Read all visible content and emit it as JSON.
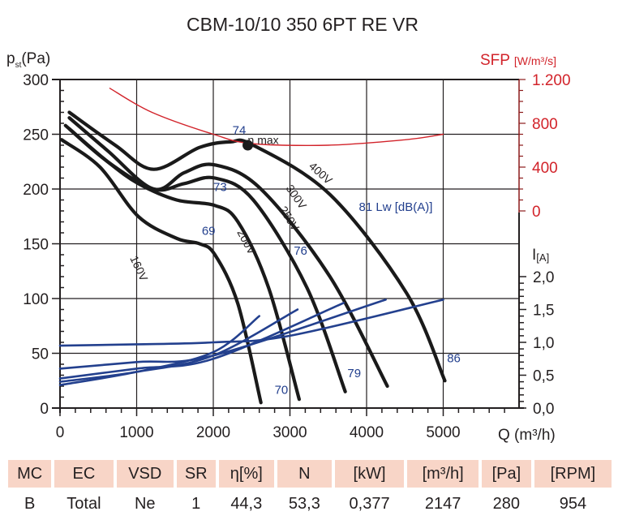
{
  "chart_data": {
    "type": "line",
    "title": "CBM-10/10 350 6PT RE VR",
    "xlabel": "Q (m³/h)",
    "ylabel": "pst(Pa)",
    "xlim": [
      0,
      6000
    ],
    "ylim": [
      0,
      300
    ],
    "x_ticks": [
      0,
      1000,
      2000,
      3000,
      4000,
      5000
    ],
    "y_ticks": [
      0,
      50,
      100,
      150,
      200,
      250,
      300
    ],
    "grid": true,
    "secondary_axes": {
      "sfp": {
        "label": "SFP",
        "unit": "[W/m³/s]",
        "ticks": [
          "1.200",
          "800",
          "400",
          "0"
        ],
        "range": [
          0,
          1200
        ],
        "color": "#d2232a"
      },
      "current": {
        "label": "I",
        "unit": "[A]",
        "ticks": [
          "0,0",
          "0,5",
          "1,0",
          "1,5",
          "2,0"
        ],
        "range": [
          0,
          2.5
        ]
      }
    },
    "series": [
      {
        "name": "160V",
        "kind": "pressure",
        "points": [
          [
            0,
            245
          ],
          [
            500,
            220
          ],
          [
            1000,
            175
          ],
          [
            1500,
            155
          ],
          [
            1800,
            150
          ],
          [
            2000,
            140
          ],
          [
            2300,
            95
          ],
          [
            2600,
            5
          ]
        ]
      },
      {
        "name": "200V",
        "kind": "pressure",
        "points": [
          [
            100,
            255
          ],
          [
            600,
            225
          ],
          [
            1000,
            205
          ],
          [
            1500,
            190
          ],
          [
            2000,
            185
          ],
          [
            2300,
            170
          ],
          [
            2700,
            110
          ],
          [
            3100,
            8
          ]
        ]
      },
      {
        "name": "250V",
        "kind": "pressure",
        "points": [
          [
            50,
            258
          ],
          [
            600,
            225
          ],
          [
            1200,
            200
          ],
          [
            1600,
            205
          ],
          [
            2000,
            210
          ],
          [
            2500,
            190
          ],
          [
            3200,
            110
          ],
          [
            3700,
            15
          ]
        ]
      },
      {
        "name": "300V",
        "kind": "pressure",
        "points": [
          [
            100,
            265
          ],
          [
            600,
            235
          ],
          [
            1200,
            200
          ],
          [
            1600,
            215
          ],
          [
            2000,
            222
          ],
          [
            2600,
            200
          ],
          [
            3500,
            120
          ],
          [
            4250,
            20
          ]
        ]
      },
      {
        "name": "400V",
        "kind": "pressure",
        "points": [
          [
            100,
            270
          ],
          [
            700,
            240
          ],
          [
            1200,
            218
          ],
          [
            1800,
            238
          ],
          [
            2200,
            243
          ],
          [
            2500,
            240
          ],
          [
            3500,
            195
          ],
          [
            4500,
            105
          ],
          [
            5000,
            25
          ]
        ]
      },
      {
        "name": "SFP",
        "kind": "sfp",
        "points": [
          [
            650,
            1120
          ],
          [
            1200,
            900
          ],
          [
            2000,
            700
          ],
          [
            2500,
            615
          ],
          [
            3500,
            600
          ],
          [
            4500,
            650
          ],
          [
            5000,
            700
          ]
        ]
      },
      {
        "name": "I 160V",
        "kind": "current",
        "points": [
          [
            0,
            0.35
          ],
          [
            1000,
            0.55
          ],
          [
            2000,
            0.85
          ],
          [
            2600,
            1.4
          ]
        ]
      },
      {
        "name": "I 200V",
        "kind": "current",
        "points": [
          [
            0,
            0.4
          ],
          [
            1000,
            0.55
          ],
          [
            2000,
            0.8
          ],
          [
            3100,
            1.5
          ]
        ]
      },
      {
        "name": "I 250V",
        "kind": "current",
        "points": [
          [
            0,
            0.45
          ],
          [
            1000,
            0.6
          ],
          [
            2000,
            0.75
          ],
          [
            3700,
            1.6
          ]
        ]
      },
      {
        "name": "I 300V",
        "kind": "current",
        "points": [
          [
            0,
            0.6
          ],
          [
            1000,
            0.7
          ],
          [
            2000,
            0.8
          ],
          [
            4250,
            1.65
          ]
        ]
      },
      {
        "name": "I 400V",
        "kind": "current",
        "points": [
          [
            0,
            0.95
          ],
          [
            1000,
            0.97
          ],
          [
            2000,
            1.0
          ],
          [
            3000,
            1.1
          ],
          [
            5000,
            1.65
          ]
        ]
      }
    ],
    "annotations": [
      {
        "text": "η max",
        "x": 2450,
        "y": 241
      },
      {
        "text": "74",
        "x": 2250,
        "y": 250
      },
      {
        "text": "73",
        "x": 2000,
        "y": 198
      },
      {
        "text": "69",
        "x": 1850,
        "y": 158
      },
      {
        "text": "76",
        "x": 3050,
        "y": 140
      },
      {
        "text": "81 Lw [dB(A)]",
        "x": 3900,
        "y": 180
      },
      {
        "text": "70",
        "x": 2800,
        "y": 13
      },
      {
        "text": "79",
        "x": 3750,
        "y": 28
      },
      {
        "text": "86",
        "x": 5050,
        "y": 42
      }
    ],
    "voltage_labels": [
      "160V",
      "200V",
      "250V",
      "300V",
      "400V"
    ]
  },
  "table": {
    "headers": [
      "MC",
      "EC",
      "VSD",
      "SR",
      "η[%]",
      "N",
      "[kW]",
      "[m³/h]",
      "[Pa]",
      "[RPM]"
    ],
    "values": [
      "B",
      "Total",
      "Ne",
      "1",
      "44,3",
      "53,3",
      "0,377",
      "2147",
      "280",
      "954"
    ]
  }
}
